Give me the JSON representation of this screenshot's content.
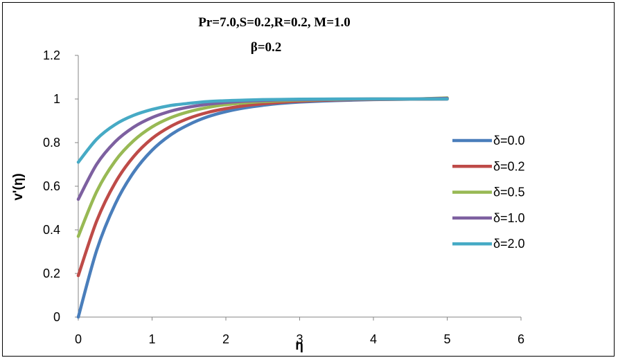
{
  "chart_data": {
    "type": "line",
    "title": "Pr=7.0,S=0.2,R=0.2, M=1.0",
    "subtitle": "β=0.2",
    "xlabel": "η",
    "ylabel": "v'(η)",
    "xlim": [
      0,
      6
    ],
    "ylim": [
      0,
      1.2
    ],
    "xticks": [
      0,
      1,
      2,
      3,
      4,
      5,
      6
    ],
    "yticks": [
      0,
      0.2,
      0.4,
      0.6,
      0.8,
      1,
      1.2
    ],
    "xtick_labels": [
      "0",
      "1",
      "2",
      "3",
      "4",
      "5",
      "6"
    ],
    "ytick_labels": [
      "0",
      "0.2",
      "0.4",
      "0.6",
      "0.8",
      "1",
      "1.2"
    ],
    "grid": false,
    "legend_position": "right",
    "x": [
      0,
      0.25,
      0.5,
      0.75,
      1,
      1.25,
      1.5,
      1.75,
      2,
      2.25,
      2.5,
      2.75,
      3,
      3.5,
      4,
      4.5,
      5
    ],
    "series": [
      {
        "name": "δ=0.0",
        "color": "#4a7ebb",
        "values": [
          0,
          0.307,
          0.518,
          0.664,
          0.765,
          0.835,
          0.883,
          0.918,
          0.942,
          0.959,
          0.971,
          0.98,
          0.986,
          0.993,
          0.997,
          0.999,
          1.0
        ]
      },
      {
        "name": "δ=0.2",
        "color": "#be4b48",
        "values": [
          0.19,
          0.441,
          0.616,
          0.736,
          0.819,
          0.874,
          0.912,
          0.938,
          0.956,
          0.969,
          0.978,
          0.985,
          0.99,
          0.996,
          0.998,
          0.999,
          1.0
        ]
      },
      {
        "name": "δ=0.5",
        "color": "#98b954",
        "values": [
          0.37,
          0.576,
          0.716,
          0.809,
          0.872,
          0.914,
          0.942,
          0.961,
          0.974,
          0.982,
          0.988,
          0.992,
          0.995,
          0.998,
          1.0,
          1.0,
          1.005
        ]
      },
      {
        "name": "δ=1.0",
        "color": "#7d60a0",
        "values": [
          0.54,
          0.701,
          0.804,
          0.871,
          0.915,
          0.944,
          0.963,
          0.976,
          0.984,
          0.99,
          0.993,
          0.996,
          0.997,
          0.999,
          1.0,
          1.0,
          1.003
        ]
      },
      {
        "name": "δ=2.0",
        "color": "#46aac5",
        "values": [
          0.71,
          0.816,
          0.883,
          0.925,
          0.952,
          0.97,
          0.98,
          0.988,
          0.992,
          0.995,
          0.997,
          0.998,
          0.999,
          1.0,
          1.0,
          1.0,
          1.0
        ]
      }
    ]
  }
}
